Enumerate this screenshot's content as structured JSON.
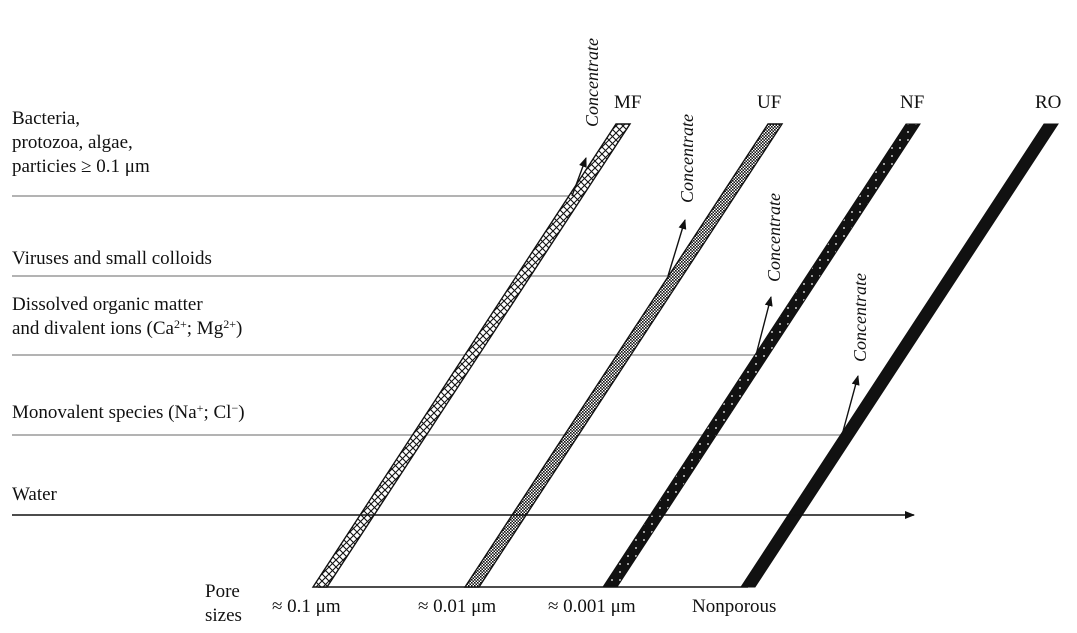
{
  "species": {
    "bacteria": [
      "Bacteria,",
      "protozoa, algae,",
      "particies ≥ 0.1 μm"
    ],
    "viruses": "Viruses and small colloids",
    "dissolved_line1": "Dissolved organic matter",
    "dissolved_line2_pre": "and divalent ions (Ca",
    "dissolved_sup1": "2+",
    "dissolved_mid": "; Mg",
    "dissolved_sup2": "2+",
    "dissolved_post": ")",
    "mono_pre": "Monovalent species (Na",
    "mono_sup1": "+",
    "mono_mid": "; Cl",
    "mono_sup2": "−",
    "mono_post": ")",
    "water": "Water"
  },
  "membranes": [
    "MF",
    "UF",
    "NF",
    "RO"
  ],
  "concentrate_label": "Concentrate",
  "pore": {
    "title_line1": "Pore",
    "title_line2": "sizes",
    "sizes": [
      "≈ 0.1 μm",
      "≈ 0.01 μm",
      "≈ 0.001 μm",
      "Nonporous"
    ]
  },
  "colors": {
    "ink": "#111111",
    "gray_line": "#9a9a9a"
  }
}
